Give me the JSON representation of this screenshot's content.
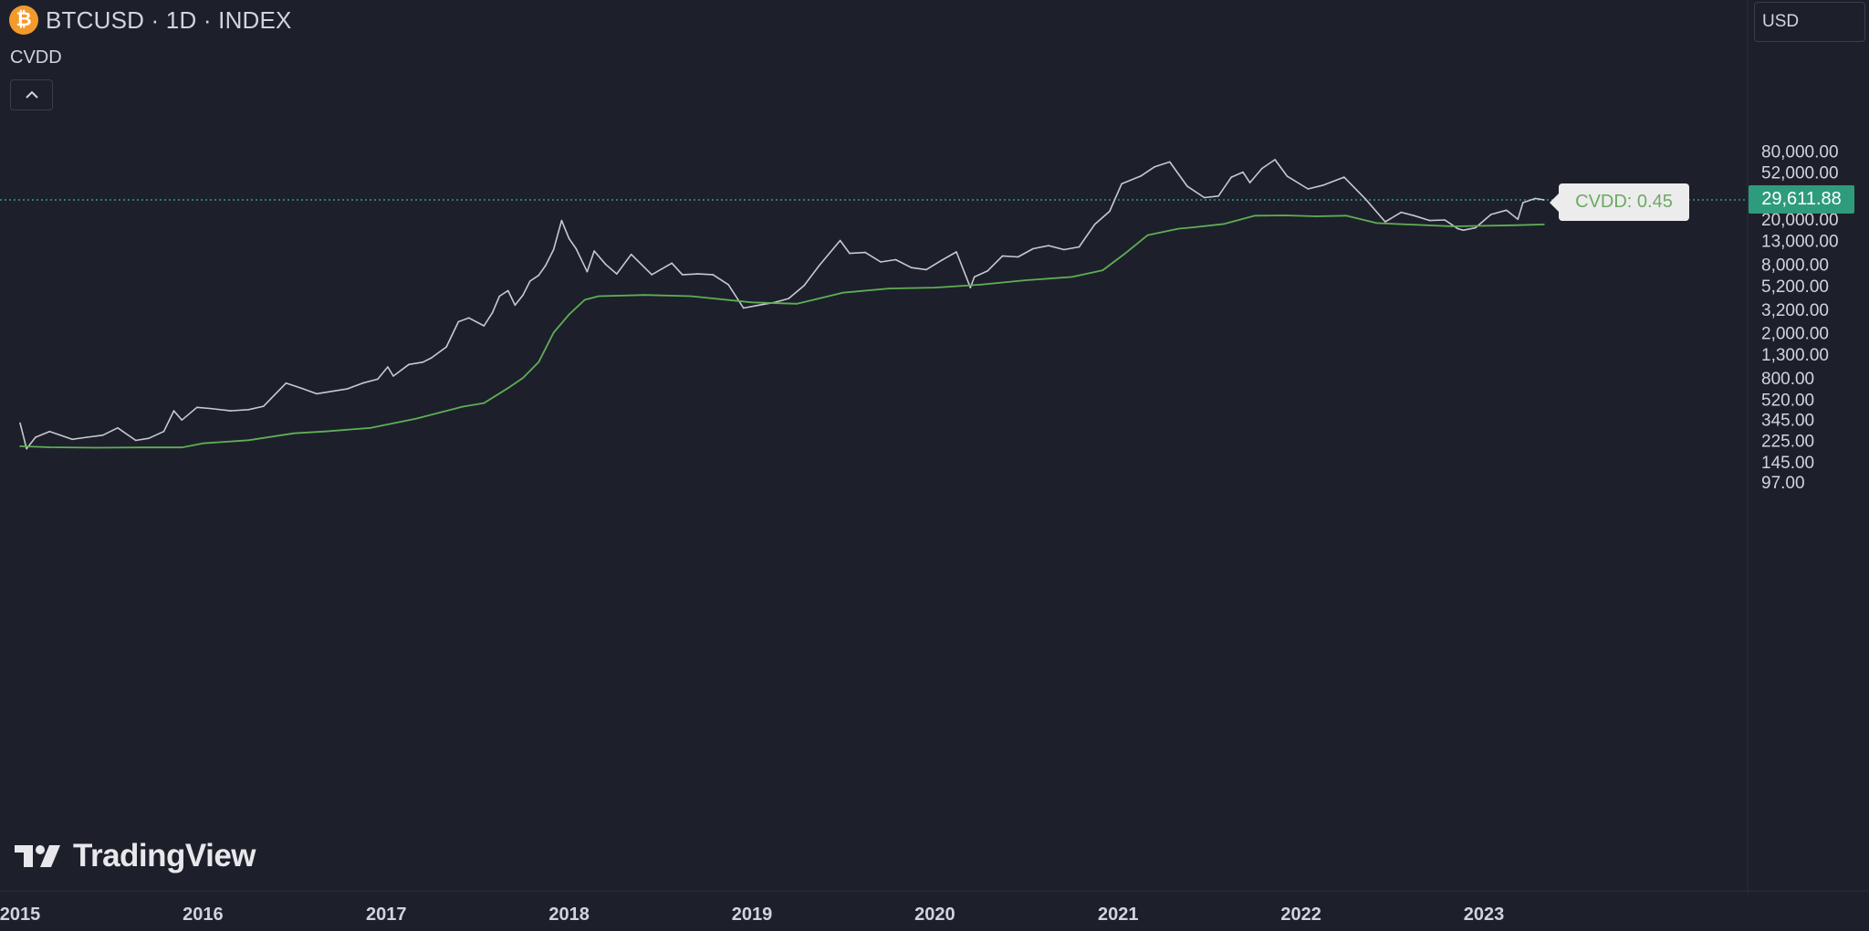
{
  "header": {
    "icon_glyph": "₿",
    "icon_name": "bitcoin-icon",
    "symbol_title": "BTCUSD · 1D · INDEX",
    "indicator_name": "CVDD",
    "collapse_icon": "chevron-up-icon"
  },
  "currency": {
    "label": "USD"
  },
  "logo": {
    "text": "TradingView"
  },
  "last_price": {
    "label": "29,611.88",
    "value": 29611.88
  },
  "tooltip": {
    "text": "CVDD: 0.45"
  },
  "colors": {
    "background": "#1d202b",
    "price_line": "#c8c9cf",
    "cvdd_line": "#5fae55",
    "price_marker": "#2e9b7d",
    "bitcoin_orange": "#f39a2d"
  },
  "chart_data": {
    "type": "line",
    "title": "",
    "xlabel": "",
    "ylabel": "",
    "y_scale": "log",
    "ylim": [
      65,
      150000
    ],
    "xlim": [
      "2015-01-01",
      "2023-12-31"
    ],
    "grid": false,
    "legend": "none",
    "x_tick_labels": [
      "2015",
      "2016",
      "2017",
      "2018",
      "2019",
      "2020",
      "2021",
      "2022",
      "2023"
    ],
    "y_tick_labels": [
      "80,000.00",
      "52,000.00",
      "20,000.00",
      "13,000.00",
      "8,000.00",
      "5,200.00",
      "3,200.00",
      "2,000.00",
      "1,300.00",
      "800.00",
      "520.00",
      "345.00",
      "225.00",
      "145.00",
      "97.00"
    ],
    "series": [
      {
        "x": [
          "2015-01-01",
          "2015-01-14",
          "2015-02-01",
          "2015-03-01",
          "2015-04-15",
          "2015-05-15",
          "2015-06-15",
          "2015-07-15",
          "2015-08-20",
          "2015-09-15",
          "2015-10-15",
          "2015-11-04",
          "2015-11-20",
          "2015-12-20",
          "2016-01-15",
          "2016-02-25",
          "2016-04-01",
          "2016-05-01",
          "2016-06-15",
          "2016-07-15",
          "2016-08-15",
          "2016-09-15",
          "2016-10-15",
          "2016-11-15",
          "2016-12-15",
          "2017-01-04",
          "2017-01-15",
          "2017-02-15",
          "2017-03-15",
          "2017-04-01",
          "2017-05-01",
          "2017-05-25",
          "2017-06-15",
          "2017-07-15",
          "2017-08-01",
          "2017-08-15",
          "2017-09-01",
          "2017-09-15",
          "2017-10-01",
          "2017-10-15",
          "2017-11-01",
          "2017-11-15",
          "2017-12-01",
          "2017-12-17",
          "2018-01-01",
          "2018-01-15",
          "2018-02-06",
          "2018-02-20",
          "2018-03-15",
          "2018-04-06",
          "2018-05-05",
          "2018-06-15",
          "2018-07-25",
          "2018-08-15",
          "2018-09-15",
          "2018-10-15",
          "2018-11-15",
          "2018-12-15",
          "2019-01-15",
          "2019-02-15",
          "2019-03-15",
          "2019-04-15",
          "2019-05-15",
          "2019-06-26",
          "2019-07-15",
          "2019-08-15",
          "2019-09-15",
          "2019-10-15",
          "2019-11-15",
          "2019-12-15",
          "2020-01-15",
          "2020-02-13",
          "2020-03-12",
          "2020-03-20",
          "2020-04-15",
          "2020-05-15",
          "2020-06-15",
          "2020-07-15",
          "2020-08-15",
          "2020-09-15",
          "2020-10-15",
          "2020-11-15",
          "2020-12-15",
          "2021-01-08",
          "2021-02-15",
          "2021-03-15",
          "2021-04-14",
          "2021-05-19",
          "2021-06-22",
          "2021-07-20",
          "2021-08-15",
          "2021-09-07",
          "2021-09-21",
          "2021-10-15",
          "2021-11-10",
          "2021-12-04",
          "2022-01-15",
          "2022-02-15",
          "2022-03-28",
          "2022-05-10",
          "2022-06-18",
          "2022-07-20",
          "2022-08-15",
          "2022-09-15",
          "2022-10-15",
          "2022-11-10",
          "2022-11-21",
          "2022-12-15",
          "2023-01-15",
          "2023-02-15",
          "2023-03-10",
          "2023-03-20",
          "2023-04-14",
          "2023-05-01"
        ],
        "y": [
          320,
          190,
          240,
          270,
          230,
          240,
          250,
          290,
          225,
          235,
          270,
          410,
          340,
          440,
          430,
          410,
          420,
          450,
          720,
          650,
          580,
          610,
          640,
          720,
          780,
          1000,
          830,
          1050,
          1100,
          1200,
          1500,
          2500,
          2700,
          2300,
          3000,
          4200,
          4700,
          3500,
          4300,
          5700,
          6400,
          7800,
          10800,
          19500,
          13500,
          11000,
          6900,
          10500,
          8000,
          6600,
          9800,
          6500,
          8200,
          6500,
          6600,
          6500,
          5300,
          3300,
          3500,
          3700,
          4000,
          5200,
          7800,
          13000,
          10000,
          10200,
          8400,
          8800,
          7500,
          7200,
          8700,
          10300,
          5000,
          6200,
          7000,
          9500,
          9300,
          11000,
          11700,
          10800,
          11400,
          18000,
          23500,
          41000,
          48000,
          58000,
          64000,
          39000,
          31000,
          32000,
          47000,
          52000,
          42000,
          56000,
          67000,
          48000,
          37000,
          40000,
          47000,
          30000,
          19000,
          23000,
          21500,
          19500,
          19700,
          16500,
          16000,
          16800,
          22000,
          24000,
          20000,
          28000,
          30500,
          29600
        ],
        "color": "#c8c9cf"
      },
      {
        "x": [
          "2015-01-01",
          "2015-03-01",
          "2015-06-01",
          "2015-09-01",
          "2015-11-20",
          "2016-01-01",
          "2016-04-01",
          "2016-07-01",
          "2016-09-01",
          "2016-12-01",
          "2017-03-01",
          "2017-06-01",
          "2017-07-15",
          "2017-09-01",
          "2017-10-01",
          "2017-11-01",
          "2017-12-01",
          "2018-01-01",
          "2018-02-01",
          "2018-03-01",
          "2018-06-01",
          "2018-09-01",
          "2019-01-01",
          "2019-04-01",
          "2019-07-01",
          "2019-10-01",
          "2020-01-01",
          "2020-04-01",
          "2020-07-01",
          "2020-10-01",
          "2020-12-01",
          "2021-01-15",
          "2021-03-01",
          "2021-05-01",
          "2021-06-01",
          "2021-08-01",
          "2021-10-01",
          "2021-12-01",
          "2022-02-01",
          "2022-04-01",
          "2022-06-01",
          "2022-08-01",
          "2022-11-01",
          "2023-01-01",
          "2023-03-01",
          "2023-05-01"
        ],
        "y": [
          200,
          196,
          194,
          195,
          195,
          212,
          226,
          260,
          270,
          290,
          350,
          445,
          480,
          650,
          800,
          1100,
          2000,
          2900,
          3900,
          4200,
          4300,
          4200,
          3700,
          3600,
          4500,
          4900,
          5000,
          5300,
          5800,
          6200,
          7100,
          10000,
          14500,
          16500,
          17000,
          18200,
          21500,
          21600,
          21200,
          21500,
          18500,
          18000,
          17300,
          17500,
          17700,
          18000
        ],
        "color": "#5fae55"
      }
    ]
  }
}
